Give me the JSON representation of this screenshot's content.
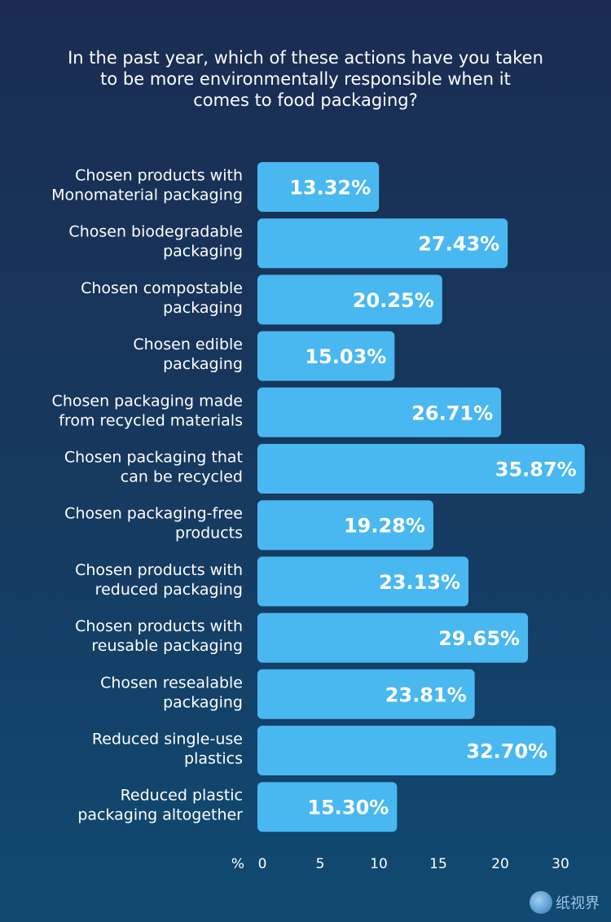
{
  "chart_data": {
    "type": "bar",
    "orientation": "horizontal",
    "title": "In the past year, which of these actions have you taken to be more environmentally responsible when it comes to food packaging?",
    "title_lines": [
      "In the past year, which of these actions have you taken",
      "to be more environmentally responsible when it",
      "comes to food packaging?"
    ],
    "categories": [
      [
        "Chosen products with",
        "Monomaterial packaging"
      ],
      [
        "Chosen biodegradable",
        "packaging"
      ],
      [
        "Chosen compostable",
        "packaging"
      ],
      [
        "Chosen edible",
        "packaging"
      ],
      [
        "Chosen packaging made",
        "from recycled materials"
      ],
      [
        "Chosen packaging that",
        "can be recycled"
      ],
      [
        "Chosen packaging-free",
        "products"
      ],
      [
        "Chosen products with",
        "reduced packaging"
      ],
      [
        "Chosen products with",
        "reusable packaging"
      ],
      [
        "Chosen resealable",
        "packaging"
      ],
      [
        "Reduced single-use",
        "plastics"
      ],
      [
        "Reduced plastic",
        "packaging altogether"
      ]
    ],
    "values": [
      13.32,
      27.43,
      20.25,
      15.03,
      26.71,
      35.87,
      19.28,
      23.13,
      29.65,
      23.81,
      32.7,
      15.3
    ],
    "value_labels": [
      "13.32%",
      "27.43%",
      "20.25%",
      "15.03%",
      "26.71%",
      "35.87%",
      "19.28%",
      "23.13%",
      "29.65%",
      "23.81%",
      "32.70%",
      "15.30%"
    ],
    "xlabel": "%",
    "xticks": [
      0,
      5,
      10,
      15,
      20,
      30
    ],
    "xlim": [
      0,
      36
    ],
    "grid": false,
    "bar_color": "#49b8f0"
  },
  "watermark": "纸视界"
}
